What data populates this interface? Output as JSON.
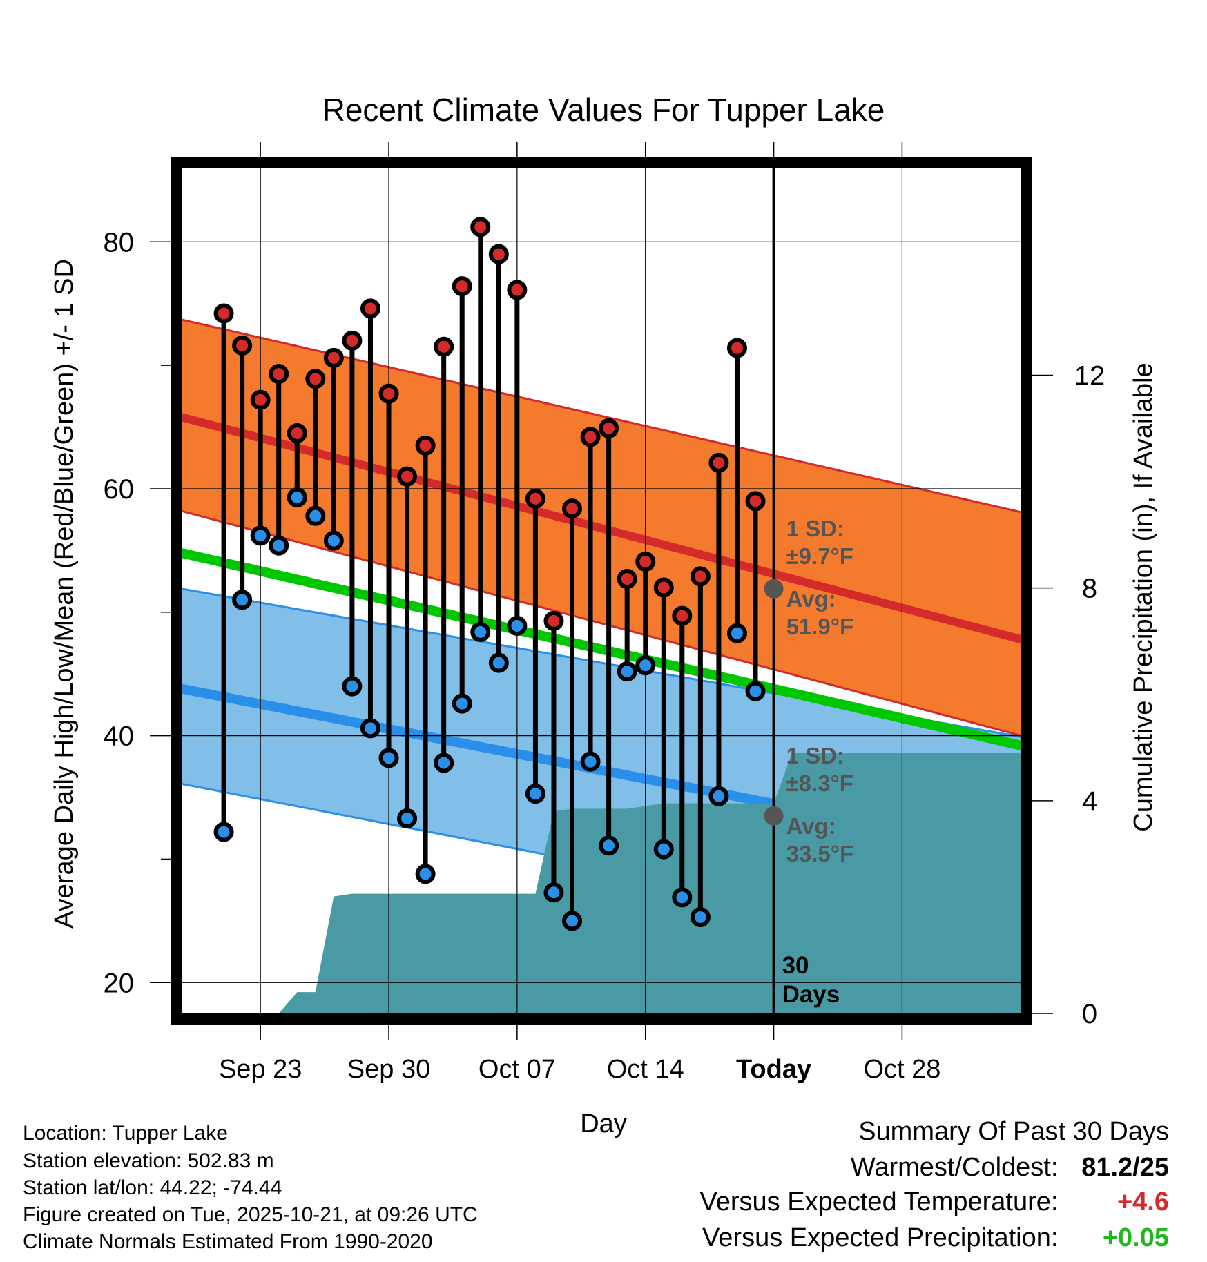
{
  "chart_data": {
    "type": "line",
    "title": "Recent Climate Values For Tupper Lake",
    "xlabel": "Day",
    "ylabel": "Average Daily High/Low/Mean (Red/Blue/Green) +/- 1 SD",
    "y2label": "Cumulative Precipitation (in), If Available",
    "ylim": [
      17.5,
      86
    ],
    "y2lim": [
      0,
      15.9
    ],
    "xlim": [
      -4.3,
      41.5
    ],
    "yticks": [
      "20",
      "40",
      "60",
      "80"
    ],
    "y2ticks": [
      "0",
      "4",
      "8",
      "12"
    ],
    "y2tick_values": [
      0,
      4,
      8,
      12
    ],
    "ytick_values": [
      20,
      40,
      60,
      80
    ],
    "xticks": [
      {
        "day": 0,
        "label": "Sep 23"
      },
      {
        "day": 7,
        "label": "Sep 30"
      },
      {
        "day": 14,
        "label": "Oct 07"
      },
      {
        "day": 21,
        "label": "Oct 14"
      },
      {
        "day": 28,
        "label": "Today"
      },
      {
        "day": 35,
        "label": "Oct 28"
      }
    ],
    "normals": {
      "high_mean_start": 65.8,
      "high_mean_end": 47.8,
      "high_upper_start": 73.7,
      "high_upper_end": 58.1,
      "high_lower_start": 58.2,
      "high_lower_end": 40.0,
      "low_mean_start": 43.8,
      "low_mean_end": 30.6,
      "low_upper_start": 51.9,
      "low_upper_end": 39.9,
      "low_lower_start": 36.1,
      "low_lower_end": 22.9,
      "mean_start": 54.8,
      "mean_end": 39.2
    },
    "series": [
      {
        "name": "Daily High",
        "color": "#d42a2a",
        "values": [
          74.2,
          71.6,
          67.2,
          69.3,
          64.5,
          68.9,
          70.6,
          72.0,
          74.6,
          67.7,
          61.0,
          63.5,
          71.5,
          76.4,
          81.2,
          79.0,
          76.1,
          59.2,
          49.3,
          58.4,
          64.2,
          64.9,
          52.7,
          54.1,
          52.0,
          49.7,
          52.9,
          62.1,
          71.4,
          59.0
        ]
      },
      {
        "name": "Daily Low",
        "color": "#2a8fe8",
        "values": [
          32.2,
          51.0,
          56.2,
          55.4,
          59.3,
          57.8,
          55.8,
          44.0,
          40.6,
          38.2,
          33.3,
          28.8,
          37.8,
          42.6,
          48.4,
          45.9,
          48.9,
          35.3,
          27.3,
          25.0,
          37.9,
          31.1,
          45.2,
          45.7,
          30.8,
          26.9,
          25.3,
          35.1,
          48.3,
          43.6
        ]
      },
      {
        "name": "Cumulative Precipitation (in)",
        "color": "#4a9aa6",
        "values": [
          0.0,
          0.0,
          0.0,
          0.0,
          0.4,
          0.4,
          2.2,
          2.25,
          2.25,
          2.25,
          2.25,
          2.25,
          2.25,
          2.25,
          2.25,
          2.25,
          2.25,
          2.25,
          3.8,
          3.85,
          3.85,
          3.85,
          3.85,
          3.9,
          3.95,
          3.95,
          3.95,
          3.95,
          3.95,
          3.95,
          3.95,
          4.9,
          4.9,
          4.9,
          4.9,
          4.9,
          4.9,
          4.9,
          4.9,
          4.9,
          4.9
        ]
      }
    ],
    "annotations": {
      "high_sd_label": "1 SD:",
      "high_sd_value": "±9.7°F",
      "high_avg_label": "Avg:",
      "high_avg_value": "51.9°F",
      "high_avg": 51.9,
      "low_sd_label": "1 SD:",
      "low_sd_value": "±8.3°F",
      "low_avg_label": "Avg:",
      "low_avg_value": "33.5°F",
      "low_avg": 33.5,
      "window_line1": "30",
      "window_line2": "Days"
    },
    "colors": {
      "high_band": "#f47a2e",
      "high_band_edge": "#d42a2a",
      "high_mean": "#d42a2a",
      "low_band": "#82bfe8",
      "low_band_edge": "#2a8fe8",
      "low_mean": "#2a8fe8",
      "mean": "#00c800",
      "precip": "#4a9aa6",
      "annotation": "#555555"
    }
  },
  "footer": {
    "location": "Location: Tupper Lake",
    "elevation": "Station elevation: 502.83 m",
    "latlon": "Station lat/lon: 44.22; -74.44",
    "created": "Figure created on Tue, 2025-10-21, at 09:26 UTC",
    "normals": "Climate Normals Estimated From 1990-2020"
  },
  "summary": {
    "title": "Summary Of Past 30 Days",
    "warmest_coldest_label": "Warmest/Coldest:",
    "warmest_coldest_value": "81.2/25",
    "temp_label": "Versus Expected Temperature:",
    "temp_value": "+4.6",
    "temp_color": "#d42a2a",
    "precip_label": "Versus Expected Precipitation:",
    "precip_value": "+0.05",
    "precip_color": "#1db81d"
  }
}
